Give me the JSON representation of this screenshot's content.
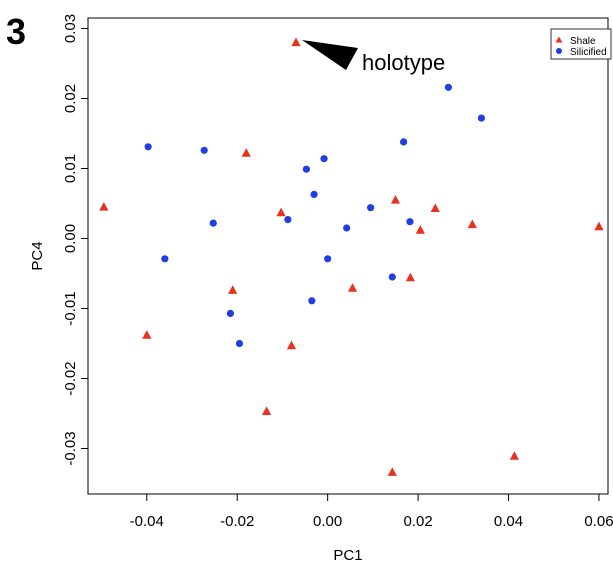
{
  "panel_label": "3",
  "colors": {
    "shale": "#e8321e",
    "silicified": "#1f3fe0",
    "axis": "#000000"
  },
  "chart_data": {
    "type": "scatter",
    "title": "",
    "xlabel": "PC1",
    "ylabel": "PC4",
    "xlim": [
      -0.053,
      0.062
    ],
    "ylim": [
      -0.0365,
      0.0315
    ],
    "x_ticks": [
      -0.04,
      -0.02,
      0.0,
      0.02,
      0.04,
      0.06
    ],
    "x_tick_labels": [
      "-0.04",
      "-0.02",
      "0.00",
      "0.02",
      "0.04",
      "0.06"
    ],
    "y_ticks": [
      -0.03,
      -0.02,
      -0.01,
      0.0,
      0.01,
      0.02,
      0.03
    ],
    "y_tick_labels": [
      "-0.03",
      "-0.02",
      "-0.01",
      "0.00",
      "0.01",
      "0.02",
      "0.03"
    ],
    "grid": false,
    "legend": {
      "position": "top-right",
      "entries": [
        "Shale",
        "Silicified"
      ]
    },
    "annotations": [
      {
        "text": "holotype",
        "points_to": [
          -0.007,
          0.028
        ]
      }
    ],
    "series": [
      {
        "name": "Shale",
        "marker": "triangle",
        "color": "#e8321e",
        "points": [
          [
            -0.007,
            0.028
          ],
          [
            -0.018,
            0.0122
          ],
          [
            -0.0495,
            0.0045
          ],
          [
            -0.0103,
            0.0037
          ],
          [
            -0.021,
            -0.0074
          ],
          [
            -0.04,
            -0.0138
          ],
          [
            -0.008,
            -0.0153
          ],
          [
            -0.0135,
            -0.0247
          ],
          [
            0.0055,
            -0.0071
          ],
          [
            0.015,
            0.0055
          ],
          [
            0.0205,
            0.0012
          ],
          [
            0.0238,
            0.0043
          ],
          [
            0.032,
            0.002
          ],
          [
            0.06,
            0.0017
          ],
          [
            0.0183,
            -0.0056
          ],
          [
            0.0143,
            -0.0334
          ],
          [
            0.0413,
            -0.0311
          ]
        ]
      },
      {
        "name": "Silicified",
        "marker": "circle",
        "color": "#1f3fe0",
        "points": [
          [
            -0.0397,
            0.0131
          ],
          [
            -0.0273,
            0.0126
          ],
          [
            -0.0008,
            0.0114
          ],
          [
            -0.0047,
            0.0099
          ],
          [
            0.0168,
            0.0138
          ],
          [
            0.0267,
            0.0216
          ],
          [
            0.034,
            0.0172
          ],
          [
            -0.003,
            0.0063
          ],
          [
            -0.0253,
            0.0022
          ],
          [
            -0.0088,
            0.0027
          ],
          [
            0.0095,
            0.0044
          ],
          [
            0.0042,
            0.0015
          ],
          [
            0.0182,
            0.0024
          ],
          [
            -0.036,
            -0.0029
          ],
          [
            0.0,
            -0.0029
          ],
          [
            0.0143,
            -0.0055
          ],
          [
            -0.0035,
            -0.0089
          ],
          [
            -0.0215,
            -0.0107
          ],
          [
            -0.0195,
            -0.015
          ]
        ]
      }
    ]
  }
}
